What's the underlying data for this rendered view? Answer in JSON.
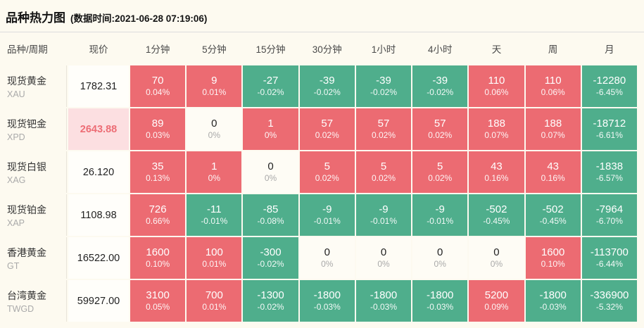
{
  "header": {
    "title": "品种热力图",
    "subtitle": "(数据时间:2021-06-28 07:19:06)"
  },
  "colors": {
    "up_cell": "#ec6b72",
    "down_cell": "#4fae8c",
    "neutral_cell": "#fefcf5",
    "price_highlight_bg": "#fcdfe1",
    "price_highlight_text": "#ed6d75",
    "page_bg": "#fdfaf0"
  },
  "table": {
    "columns": [
      "品种/周期",
      "现价",
      "1分钟",
      "5分钟",
      "15分钟",
      "30分钟",
      "1小时",
      "4小时",
      "天",
      "周",
      "月"
    ],
    "rows": [
      {
        "name": "现货黄金",
        "symbol": "XAU",
        "price": "1782.31",
        "highlight": false,
        "cells": [
          {
            "v": "70",
            "p": "0.04%",
            "c": "up"
          },
          {
            "v": "9",
            "p": "0.01%",
            "c": "up"
          },
          {
            "v": "-27",
            "p": "-0.02%",
            "c": "down"
          },
          {
            "v": "-39",
            "p": "-0.02%",
            "c": "down"
          },
          {
            "v": "-39",
            "p": "-0.02%",
            "c": "down"
          },
          {
            "v": "-39",
            "p": "-0.02%",
            "c": "down"
          },
          {
            "v": "110",
            "p": "0.06%",
            "c": "up"
          },
          {
            "v": "110",
            "p": "0.06%",
            "c": "up"
          },
          {
            "v": "-12280",
            "p": "-6.45%",
            "c": "down"
          }
        ]
      },
      {
        "name": "现货钯金",
        "symbol": "XPD",
        "price": "2643.88",
        "highlight": true,
        "cells": [
          {
            "v": "89",
            "p": "0.03%",
            "c": "up"
          },
          {
            "v": "0",
            "p": "0%",
            "c": "zero"
          },
          {
            "v": "1",
            "p": "0%",
            "c": "up"
          },
          {
            "v": "57",
            "p": "0.02%",
            "c": "up"
          },
          {
            "v": "57",
            "p": "0.02%",
            "c": "up"
          },
          {
            "v": "57",
            "p": "0.02%",
            "c": "up"
          },
          {
            "v": "188",
            "p": "0.07%",
            "c": "up"
          },
          {
            "v": "188",
            "p": "0.07%",
            "c": "up"
          },
          {
            "v": "-18712",
            "p": "-6.61%",
            "c": "down"
          }
        ]
      },
      {
        "name": "现货白银",
        "symbol": "XAG",
        "price": "26.120",
        "highlight": false,
        "cells": [
          {
            "v": "35",
            "p": "0.13%",
            "c": "up"
          },
          {
            "v": "1",
            "p": "0%",
            "c": "up"
          },
          {
            "v": "0",
            "p": "0%",
            "c": "zero"
          },
          {
            "v": "5",
            "p": "0.02%",
            "c": "up"
          },
          {
            "v": "5",
            "p": "0.02%",
            "c": "up"
          },
          {
            "v": "5",
            "p": "0.02%",
            "c": "up"
          },
          {
            "v": "43",
            "p": "0.16%",
            "c": "up"
          },
          {
            "v": "43",
            "p": "0.16%",
            "c": "up"
          },
          {
            "v": "-1838",
            "p": "-6.57%",
            "c": "down"
          }
        ]
      },
      {
        "name": "现货铂金",
        "symbol": "XAP",
        "price": "1108.98",
        "highlight": false,
        "cells": [
          {
            "v": "726",
            "p": "0.66%",
            "c": "up"
          },
          {
            "v": "-11",
            "p": "-0.01%",
            "c": "down"
          },
          {
            "v": "-85",
            "p": "-0.08%",
            "c": "down"
          },
          {
            "v": "-9",
            "p": "-0.01%",
            "c": "down"
          },
          {
            "v": "-9",
            "p": "-0.01%",
            "c": "down"
          },
          {
            "v": "-9",
            "p": "-0.01%",
            "c": "down"
          },
          {
            "v": "-502",
            "p": "-0.45%",
            "c": "down"
          },
          {
            "v": "-502",
            "p": "-0.45%",
            "c": "down"
          },
          {
            "v": "-7964",
            "p": "-6.70%",
            "c": "down"
          }
        ]
      },
      {
        "name": "香港黄金",
        "symbol": "GT",
        "price": "16522.00",
        "highlight": false,
        "cells": [
          {
            "v": "1600",
            "p": "0.10%",
            "c": "up"
          },
          {
            "v": "100",
            "p": "0.01%",
            "c": "up"
          },
          {
            "v": "-300",
            "p": "-0.02%",
            "c": "down"
          },
          {
            "v": "0",
            "p": "0%",
            "c": "zero"
          },
          {
            "v": "0",
            "p": "0%",
            "c": "zero"
          },
          {
            "v": "0",
            "p": "0%",
            "c": "zero"
          },
          {
            "v": "0",
            "p": "0%",
            "c": "zero"
          },
          {
            "v": "1600",
            "p": "0.10%",
            "c": "up"
          },
          {
            "v": "-113700",
            "p": "-6.44%",
            "c": "down"
          }
        ]
      },
      {
        "name": "台湾黄金",
        "symbol": "TWGD",
        "price": "59927.00",
        "highlight": false,
        "cells": [
          {
            "v": "3100",
            "p": "0.05%",
            "c": "up"
          },
          {
            "v": "700",
            "p": "0.01%",
            "c": "up"
          },
          {
            "v": "-1300",
            "p": "-0.02%",
            "c": "down"
          },
          {
            "v": "-1800",
            "p": "-0.03%",
            "c": "down"
          },
          {
            "v": "-1800",
            "p": "-0.03%",
            "c": "down"
          },
          {
            "v": "-1800",
            "p": "-0.03%",
            "c": "down"
          },
          {
            "v": "5200",
            "p": "0.09%",
            "c": "up"
          },
          {
            "v": "-1800",
            "p": "-0.03%",
            "c": "down"
          },
          {
            "v": "-336900",
            "p": "-5.32%",
            "c": "down"
          }
        ]
      }
    ]
  },
  "chart_data": {
    "type": "heatmap",
    "title": "品种热力图",
    "timestamp": "2021-06-28 07:19:06",
    "columns": [
      "1分钟",
      "5分钟",
      "15分钟",
      "30分钟",
      "1小时",
      "4小时",
      "天",
      "周",
      "月"
    ],
    "rows": [
      "现货黄金 XAU",
      "现货钯金 XPD",
      "现货白银 XAG",
      "现货铂金 XAP",
      "香港黄金 GT",
      "台湾黄金 TWGD"
    ],
    "prices": [
      1782.31,
      2643.88,
      26.12,
      1108.98,
      16522.0,
      59927.0
    ],
    "values": [
      [
        70,
        9,
        -27,
        -39,
        -39,
        -39,
        110,
        110,
        -12280
      ],
      [
        89,
        0,
        1,
        57,
        57,
        57,
        188,
        188,
        -18712
      ],
      [
        35,
        1,
        0,
        5,
        5,
        5,
        43,
        43,
        -1838
      ],
      [
        726,
        -11,
        -85,
        -9,
        -9,
        -9,
        -502,
        -502,
        -7964
      ],
      [
        1600,
        100,
        -300,
        0,
        0,
        0,
        0,
        1600,
        -113700
      ],
      [
        3100,
        700,
        -1300,
        -1800,
        -1800,
        -1800,
        5200,
        -1800,
        -336900
      ]
    ],
    "percents": [
      [
        0.04,
        0.01,
        -0.02,
        -0.02,
        -0.02,
        -0.02,
        0.06,
        0.06,
        -6.45
      ],
      [
        0.03,
        0,
        0,
        0.02,
        0.02,
        0.02,
        0.07,
        0.07,
        -6.61
      ],
      [
        0.13,
        0,
        0,
        0.02,
        0.02,
        0.02,
        0.16,
        0.16,
        -6.57
      ],
      [
        0.66,
        -0.01,
        -0.08,
        -0.01,
        -0.01,
        -0.01,
        -0.45,
        -0.45,
        -6.7
      ],
      [
        0.1,
        0.01,
        -0.02,
        0,
        0,
        0,
        0,
        0.1,
        -6.44
      ],
      [
        0.05,
        0.01,
        -0.02,
        -0.03,
        -0.03,
        -0.03,
        0.09,
        -0.03,
        -5.32
      ]
    ],
    "legend": "red = rise, green = fall, neutral = unchanged",
    "grid": false
  }
}
